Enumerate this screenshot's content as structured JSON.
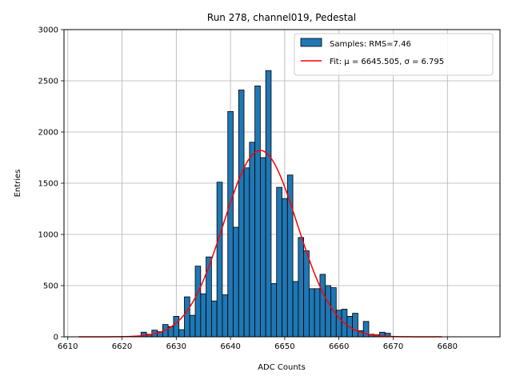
{
  "chart_data": {
    "type": "bar",
    "title": "Run 278, channel019, Pedestal",
    "xlabel": "ADC Counts",
    "ylabel": "Entries",
    "xlim": [
      6609.3,
      6689.7
    ],
    "ylim": [
      0,
      3000
    ],
    "xticks": [
      6610,
      6620,
      6630,
      6640,
      6650,
      6660,
      6670,
      6680
    ],
    "yticks": [
      0,
      500,
      1000,
      1500,
      2000,
      2500,
      3000
    ],
    "grid": true,
    "legend_position": "top-right",
    "bin_width": 1,
    "series": [
      {
        "name": "Samples: RMS=7.46",
        "kind": "histogram",
        "color": "#1f77b4",
        "edgecolor": "#000000",
        "bins": [
          [
            6624,
            45
          ],
          [
            6625,
            25
          ],
          [
            6626,
            65
          ],
          [
            6627,
            50
          ],
          [
            6628,
            120
          ],
          [
            6629,
            100
          ],
          [
            6630,
            200
          ],
          [
            6631,
            70
          ],
          [
            6632,
            390
          ],
          [
            6633,
            210
          ],
          [
            6634,
            690
          ],
          [
            6635,
            420
          ],
          [
            6636,
            780
          ],
          [
            6637,
            350
          ],
          [
            6638,
            1510
          ],
          [
            6639,
            410
          ],
          [
            6640,
            2200
          ],
          [
            6641,
            1070
          ],
          [
            6642,
            2410
          ],
          [
            6643,
            1650
          ],
          [
            6644,
            1900
          ],
          [
            6645,
            2450
          ],
          [
            6646,
            1750
          ],
          [
            6647,
            2600
          ],
          [
            6648,
            520
          ],
          [
            6649,
            1460
          ],
          [
            6650,
            1350
          ],
          [
            6651,
            1580
          ],
          [
            6652,
            540
          ],
          [
            6653,
            970
          ],
          [
            6654,
            840
          ],
          [
            6655,
            470
          ],
          [
            6656,
            470
          ],
          [
            6657,
            610
          ],
          [
            6658,
            500
          ],
          [
            6659,
            480
          ],
          [
            6660,
            260
          ],
          [
            6661,
            270
          ],
          [
            6662,
            200
          ],
          [
            6663,
            230
          ],
          [
            6664,
            60
          ],
          [
            6665,
            150
          ],
          [
            6666,
            25
          ],
          [
            6667,
            20
          ],
          [
            6668,
            45
          ],
          [
            6669,
            35
          ]
        ]
      },
      {
        "name": "Fit: μ = 6645.505, σ = 6.795",
        "kind": "gaussian",
        "color": "#ff0000",
        "mu": 6645.505,
        "sigma": 6.795,
        "amplitude": 1820,
        "x_range": [
          6612,
          6679
        ]
      }
    ]
  }
}
